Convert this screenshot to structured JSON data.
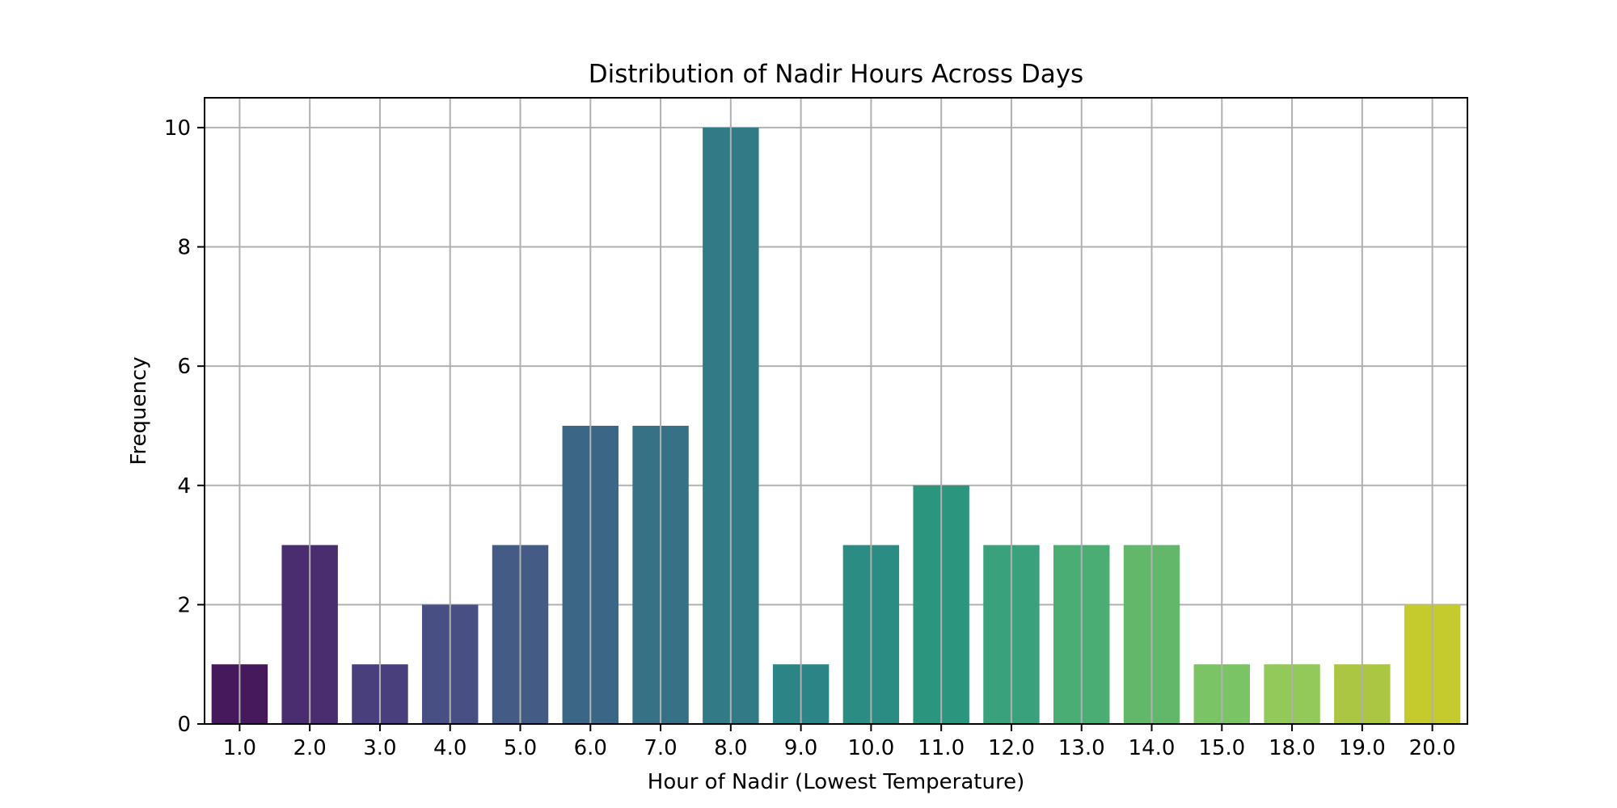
{
  "chart_data": {
    "type": "bar",
    "title": "Distribution of Nadir Hours Across Days",
    "xlabel": "Hour of Nadir (Lowest Temperature)",
    "ylabel": "Frequency",
    "categories": [
      "1.0",
      "2.0",
      "3.0",
      "4.0",
      "5.0",
      "6.0",
      "7.0",
      "8.0",
      "9.0",
      "10.0",
      "11.0",
      "12.0",
      "13.0",
      "14.0",
      "15.0",
      "18.0",
      "19.0",
      "20.0"
    ],
    "values": [
      1,
      3,
      1,
      2,
      3,
      5,
      5,
      10,
      1,
      3,
      4,
      3,
      3,
      3,
      1,
      1,
      1,
      2
    ],
    "colors": [
      "#46195c",
      "#4a2d6f",
      "#4a3f7d",
      "#484f83",
      "#435b85",
      "#3c6686",
      "#367186",
      "#317a86",
      "#2d8486",
      "#2b8c83",
      "#2c957e",
      "#39a27c",
      "#4aad74",
      "#63b76b",
      "#7bc466",
      "#93c95a",
      "#aac642",
      "#c5ca2d"
    ],
    "yticks": [
      "0",
      "2",
      "4",
      "6",
      "8",
      "10"
    ],
    "ylim": [
      0,
      10.5
    ],
    "grid": true,
    "legend": "none"
  }
}
